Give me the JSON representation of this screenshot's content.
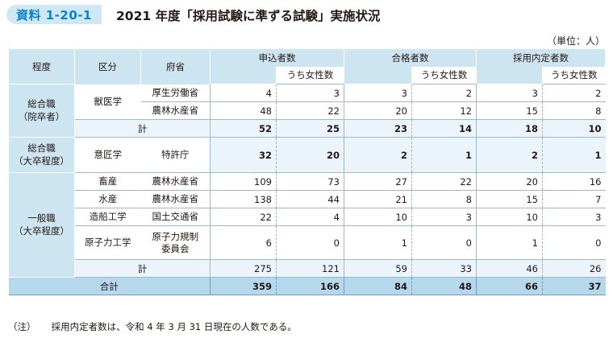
{
  "header": {
    "badge": "資料 1-20-1",
    "title": "2021 年度「採用試験に準ずる試験」実施状況"
  },
  "unit_label": "（単位：人）",
  "columns": {
    "level": "程度",
    "division": "区分",
    "ministry": "府省",
    "applicants": "申込者数",
    "passed": "合格者数",
    "hired": "採用内定者数",
    "women": "うち女性数"
  },
  "groups": [
    {
      "level": "総合職\n（院卒者）",
      "rows": [
        {
          "division": "獣医学",
          "ministry": "厚生労働省",
          "values": [
            "4",
            "3",
            "3",
            "2",
            "3",
            "2"
          ]
        },
        {
          "division": "獣医学",
          "ministry": "農林水産省",
          "values": [
            "48",
            "22",
            "20",
            "12",
            "15",
            "8"
          ]
        }
      ],
      "total_label": "計",
      "total": [
        "52",
        "25",
        "23",
        "14",
        "18",
        "10"
      ]
    },
    {
      "level": "総合職\n（大卒程度）",
      "rows": [
        {
          "division": "意匠学",
          "ministry": "特許庁",
          "values": [
            "32",
            "20",
            "2",
            "1",
            "2",
            "1"
          ]
        }
      ]
    },
    {
      "level": "一般職\n（大卒程度）",
      "rows": [
        {
          "division": "畜産",
          "ministry": "農林水産省",
          "values": [
            "109",
            "73",
            "27",
            "22",
            "20",
            "16"
          ]
        },
        {
          "division": "水産",
          "ministry": "農林水産省",
          "values": [
            "138",
            "44",
            "21",
            "8",
            "15",
            "7"
          ]
        },
        {
          "division": "造船工学",
          "ministry": "国土交通省",
          "values": [
            "22",
            "4",
            "10",
            "3",
            "10",
            "3"
          ]
        },
        {
          "division": "原子力工学",
          "ministry": "原子力規制\n委員会",
          "values": [
            "6",
            "0",
            "1",
            "0",
            "1",
            "0"
          ]
        }
      ],
      "total_label": "計",
      "total": [
        "275",
        "121",
        "59",
        "33",
        "46",
        "26"
      ]
    }
  ],
  "grand_total": {
    "label": "合計",
    "values": [
      "359",
      "166",
      "84",
      "48",
      "66",
      "37"
    ]
  },
  "note": {
    "mark": "（注）",
    "text": "採用内定者数は、令和 4 年 3 月 31 日現在の人数である。"
  },
  "colors": {
    "accent": "#0a84c6",
    "header_fill": "#cde4f1",
    "total_fill": "#b6d8ec"
  }
}
